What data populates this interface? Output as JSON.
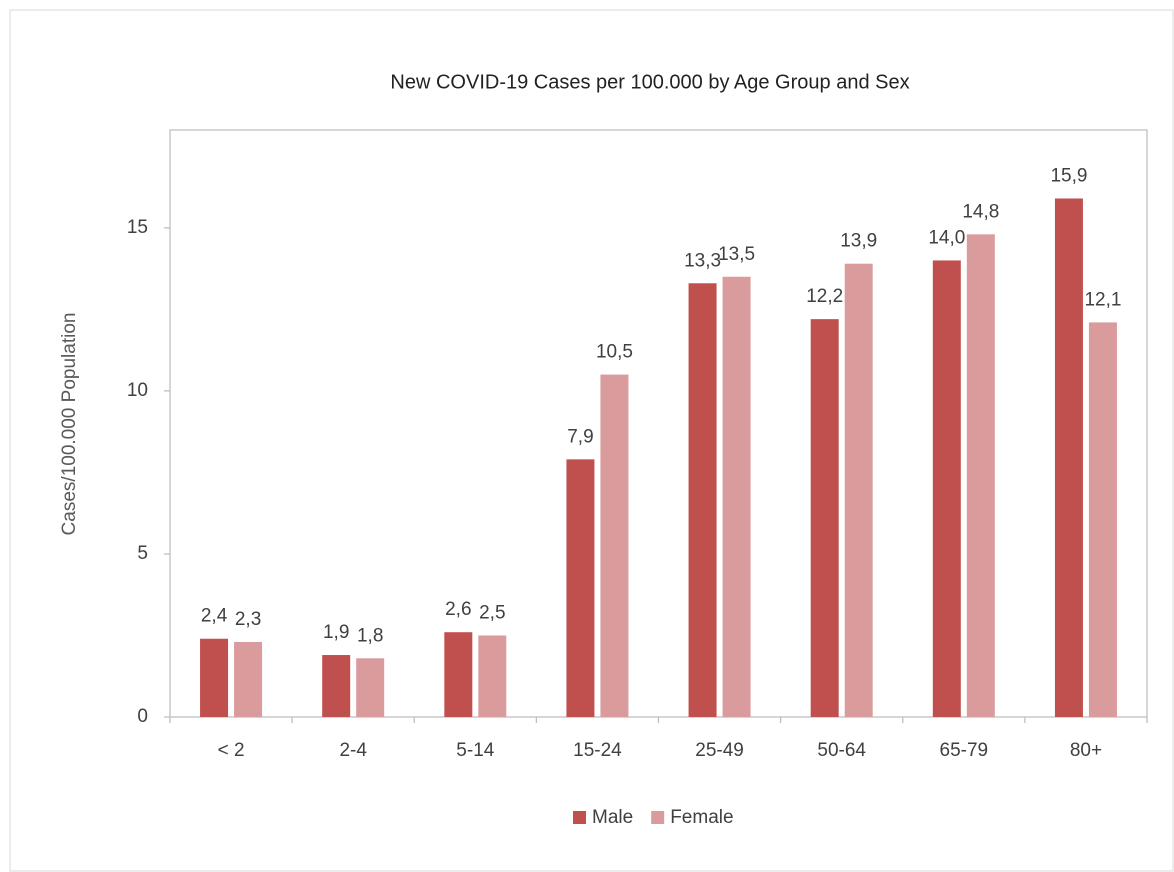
{
  "chart_data": {
    "type": "bar",
    "title": "New COVID-19 Cases per 100.000 by Age Group and Sex",
    "y_label": "Cases/100.000 Population",
    "categories": [
      "< 2",
      "2-4",
      "5-14",
      "15-24",
      "25-49",
      "50-64",
      "65-79",
      "80+"
    ],
    "series": [
      {
        "name": "Male",
        "color": "#c0504d",
        "values": [
          2.4,
          1.9,
          2.6,
          7.9,
          13.3,
          12.2,
          14.0,
          15.9
        ],
        "value_labels": [
          "2,4",
          "1,9",
          "2,6",
          "7,9",
          "13,3",
          "12,2",
          "14,0",
          "15,9"
        ]
      },
      {
        "name": "Female",
        "color": "#d99b9b",
        "values": [
          2.3,
          1.8,
          2.5,
          10.5,
          13.5,
          13.9,
          14.8,
          12.1
        ],
        "value_labels": [
          "2,3",
          "1,8",
          "2,5",
          "10,5",
          "13,5",
          "13,9",
          "14,8",
          "12,1"
        ]
      }
    ],
    "ylim": [
      0,
      18
    ],
    "yticks": [
      0,
      5,
      10,
      15
    ],
    "grid": false,
    "legend": "bottom"
  }
}
